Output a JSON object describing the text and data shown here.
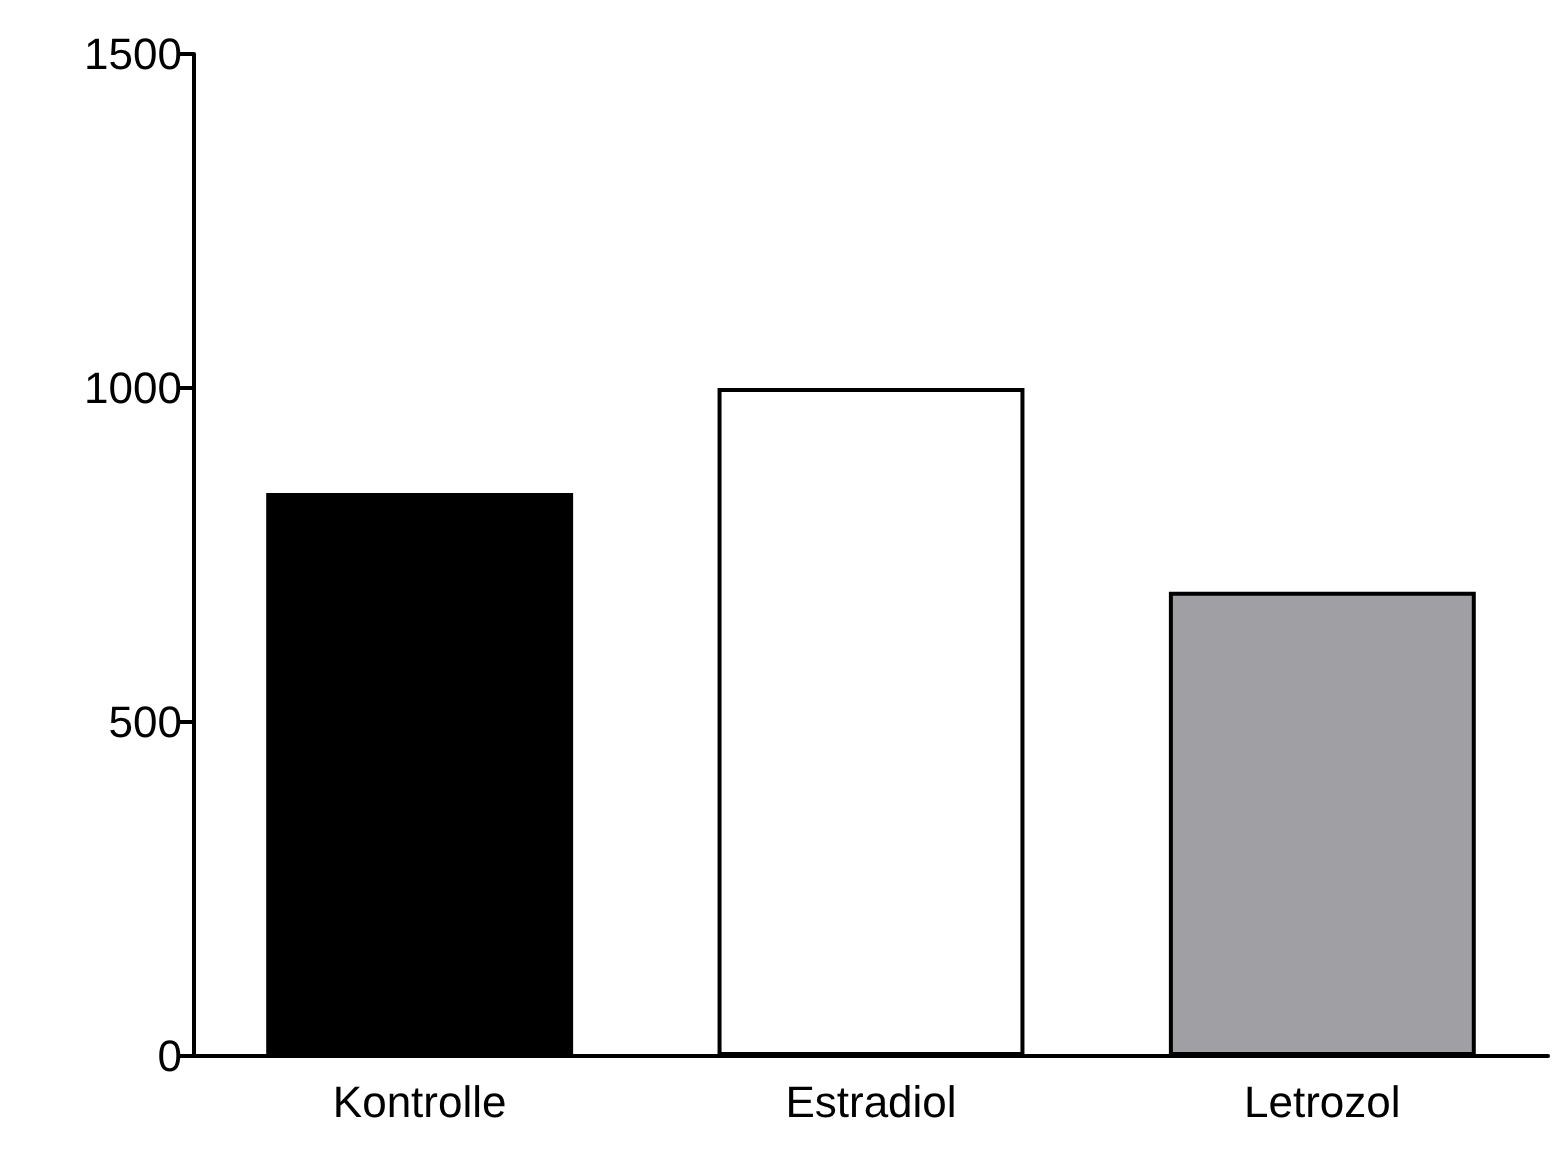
{
  "chart_data": {
    "type": "bar",
    "categories": [
      "Kontrolle",
      "Estradiol",
      "Letrozol"
    ],
    "values": [
      843,
      1000,
      695
    ],
    "colors": [
      "#000000",
      "#ffffff",
      "#a0a0a4"
    ],
    "ylim": [
      0,
      1500
    ],
    "yticks": [
      0,
      500,
      1000,
      1500
    ],
    "grid": false
  }
}
